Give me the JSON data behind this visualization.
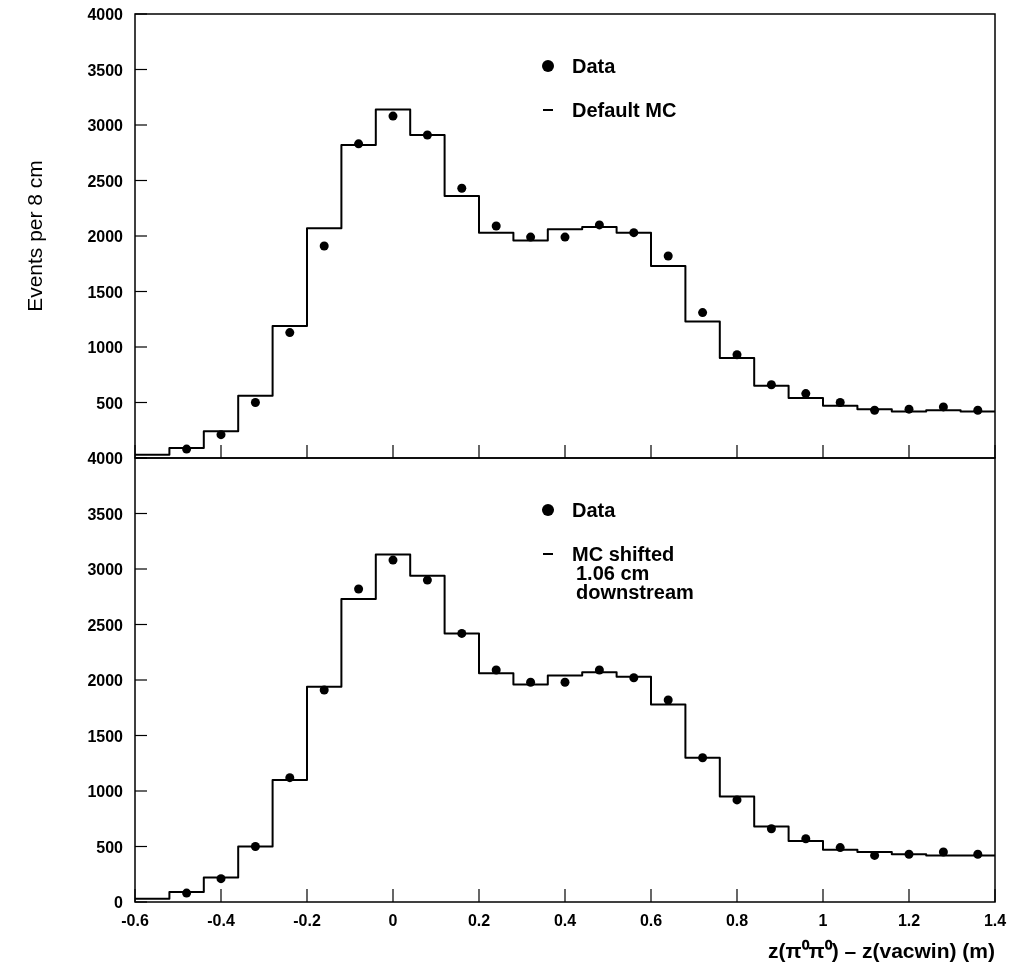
{
  "chart_data": [
    {
      "type": "histogram",
      "ylabel": "Events per 8 cm",
      "bins": [
        -0.6,
        -0.52,
        -0.44,
        -0.36,
        -0.28,
        -0.2,
        -0.12,
        -0.04,
        0.04,
        0.12,
        0.2,
        0.28,
        0.36,
        0.44,
        0.52,
        0.6,
        0.68,
        0.76,
        0.84,
        0.92,
        1.0,
        1.08,
        1.16,
        1.24,
        1.32,
        1.4
      ],
      "xlim": [
        -0.6,
        1.4
      ],
      "xticks": [
        -0.6,
        -0.4,
        -0.2,
        0,
        0.2,
        0.4,
        0.6,
        0.8,
        1,
        1.2,
        1.4
      ],
      "ylim": [
        0,
        4000
      ],
      "yticks": [
        {
          "value": 0,
          "label": null
        },
        500,
        1000,
        1500,
        2000,
        2500,
        3000,
        3500,
        4000
      ],
      "tick_labels": "y",
      "legend": "top right",
      "series": [
        {
          "name": "Data",
          "type": "scatter",
          "color": "#000000",
          "marker": "circle",
          "x": [
            -0.48,
            -0.4,
            -0.32,
            -0.24,
            -0.16,
            -0.08,
            0,
            0.08,
            0.16,
            0.24,
            0.32,
            0.4,
            0.48,
            0.56,
            0.64,
            0.72,
            0.8,
            0.88,
            0.96,
            1.04,
            1.12,
            1.2,
            1.28,
            1.36
          ],
          "values": [
            80,
            210,
            500,
            1130,
            1910,
            2830,
            3080,
            2910,
            2430,
            2090,
            1990,
            1990,
            2100,
            2030,
            1820,
            1310,
            930,
            660,
            580,
            500,
            430,
            440,
            460,
            430
          ]
        },
        {
          "name": "Default MC",
          "type": "histogram",
          "color": "#000000",
          "values": [
            30,
            90,
            240,
            560,
            1190,
            2070,
            2820,
            3140,
            2910,
            2360,
            2030,
            1960,
            2060,
            2080,
            2030,
            1730,
            1230,
            900,
            650,
            540,
            470,
            440,
            420,
            430,
            420
          ]
        }
      ]
    },
    {
      "type": "histogram",
      "xlabel": "z(π⁰π⁰) – z(vacwin) (m)",
      "bins": [
        -0.6,
        -0.52,
        -0.44,
        -0.36,
        -0.28,
        -0.2,
        -0.12,
        -0.04,
        0.04,
        0.12,
        0.2,
        0.28,
        0.36,
        0.44,
        0.52,
        0.6,
        0.68,
        0.76,
        0.84,
        0.92,
        1.0,
        1.08,
        1.16,
        1.24,
        1.32,
        1.4
      ],
      "xlim": [
        -0.6,
        1.4
      ],
      "xticks": [
        -0.6,
        -0.4,
        -0.2,
        0,
        0.2,
        0.4,
        0.6,
        0.8,
        1,
        1.2,
        1.4
      ],
      "ylim": [
        0,
        4000
      ],
      "yticks": [
        0,
        500,
        1000,
        1500,
        2000,
        2500,
        3000,
        3500,
        4000
      ],
      "legend": "top right",
      "series": [
        {
          "name": "Data",
          "type": "scatter",
          "color": "#000000",
          "marker": "circle",
          "x": [
            -0.48,
            -0.4,
            -0.32,
            -0.24,
            -0.16,
            -0.08,
            0,
            0.08,
            0.16,
            0.24,
            0.32,
            0.4,
            0.48,
            0.56,
            0.64,
            0.72,
            0.8,
            0.88,
            0.96,
            1.04,
            1.12,
            1.2,
            1.28,
            1.36
          ],
          "values": [
            80,
            210,
            500,
            1120,
            1910,
            2820,
            3080,
            2900,
            2420,
            2090,
            1980,
            1980,
            2090,
            2020,
            1820,
            1300,
            920,
            660,
            570,
            490,
            420,
            430,
            450,
            430
          ]
        },
        {
          "name": "MC shifted 1.06 cm downstream",
          "type": "histogram",
          "color": "#000000",
          "values": [
            30,
            90,
            220,
            500,
            1100,
            1940,
            2730,
            3130,
            2940,
            2420,
            2060,
            1960,
            2040,
            2070,
            2030,
            1780,
            1300,
            950,
            680,
            550,
            470,
            450,
            430,
            420,
            420
          ]
        }
      ]
    }
  ]
}
